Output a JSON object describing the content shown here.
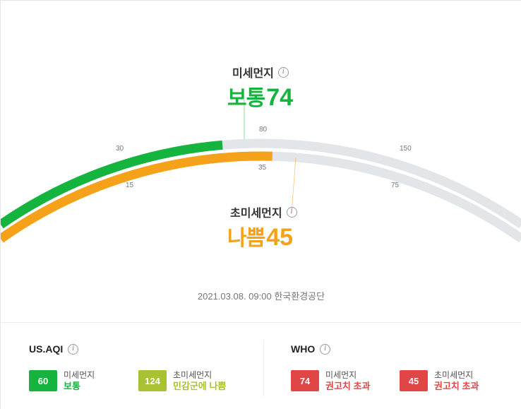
{
  "gauge": {
    "pm10": {
      "label": "미세먼지",
      "status": "보통",
      "value": "74",
      "color": "#15b43f",
      "level_fraction": 0.43
    },
    "pm25": {
      "label": "초미세먼지",
      "status": "나쁨",
      "value": "45",
      "color": "#f5a21a",
      "level_fraction": 0.52
    },
    "outer_ticks": [
      "30",
      "80",
      "150"
    ],
    "inner_ticks": [
      "15",
      "35",
      "75"
    ],
    "track_color": "#e2e6e8"
  },
  "timestamp": "2021.03.08. 09:00 한국환경공단",
  "us_aqi": {
    "title": "US.AQI",
    "items": [
      {
        "value": "60",
        "name": "미세먼지",
        "status": "보통",
        "color": "#15b43f"
      },
      {
        "value": "124",
        "name": "초미세먼지",
        "status": "민감군에 나쁨",
        "color": "#a8c232"
      }
    ]
  },
  "who": {
    "title": "WHO",
    "items": [
      {
        "value": "74",
        "name": "미세먼지",
        "status": "권고치 초과",
        "color": "#e04646"
      },
      {
        "value": "45",
        "name": "초미세먼지",
        "status": "권고치 초과",
        "color": "#e04646"
      }
    ]
  }
}
